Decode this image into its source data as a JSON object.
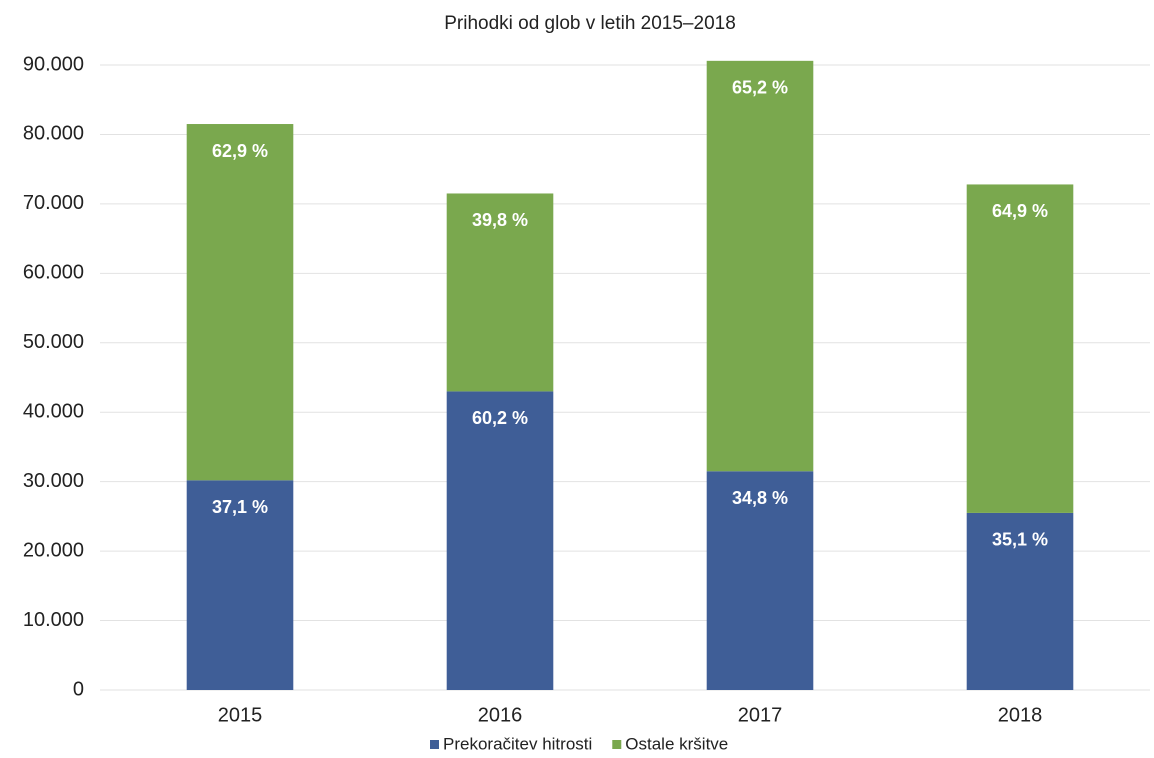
{
  "chart_data": {
    "type": "stacked_bar",
    "title": "Prihodki od glob v letih 2015–2018",
    "categories": [
      "2015",
      "2016",
      "2017",
      "2018"
    ],
    "series": [
      {
        "name": "Prekoračitev hitrosti",
        "color": "#3f5e97",
        "values": [
          30200,
          43000,
          31500,
          25500
        ],
        "share_labels": [
          "37,1 %",
          "60,2 %",
          "34,8 %",
          "35,1 %"
        ]
      },
      {
        "name": "Ostale kršitve",
        "color": "#7aa84e",
        "values": [
          51300,
          28500,
          59100,
          47300
        ],
        "share_labels": [
          "62,9 %",
          "39,8 %",
          "65,2 %",
          "64,9 %"
        ]
      }
    ],
    "ylim": [
      0,
      90000
    ],
    "yticks": [
      0,
      {
        "value": 10000,
        "label": "10.000"
      },
      {
        "value": 20000,
        "label": "20.000"
      },
      {
        "value": 30000,
        "label": "30.000"
      },
      {
        "value": 40000,
        "label": "40.000"
      },
      {
        "value": 50000,
        "label": "50.000"
      },
      {
        "value": 60000,
        "label": "60.000"
      },
      {
        "value": 70000,
        "label": "70.000"
      },
      {
        "value": 80000,
        "label": "80.000"
      },
      {
        "value": 90000,
        "label": "90.000"
      }
    ],
    "grid": true,
    "legend": "bottom"
  }
}
